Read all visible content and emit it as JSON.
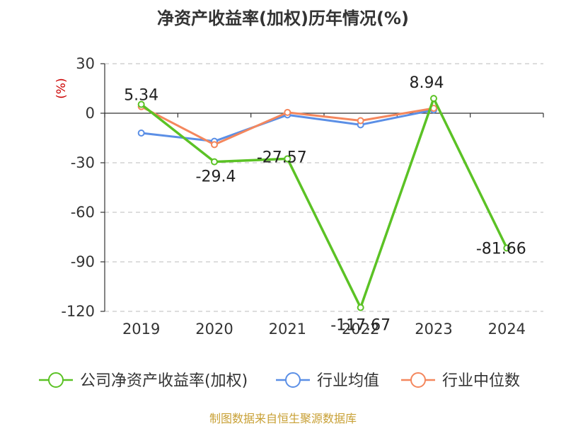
{
  "title": "净资产收益率(加权)历年情况(%)",
  "source": "制图数据来自恒生聚源数据库",
  "colors": {
    "company": "#5BC225",
    "industry_avg": "#5B8FE6",
    "industry_median": "#F4875D",
    "unit": "#CC0000",
    "source": "#C8A035",
    "grid": "#BBBBBB",
    "axis": "#333333"
  },
  "chart_data": {
    "type": "line",
    "title": "净资产收益率(加权)历年情况(%)",
    "ylabel": "(%)",
    "xlabel": "",
    "ylim": [
      -120,
      30
    ],
    "yticks": [
      30,
      0,
      -30,
      -60,
      -90,
      -120
    ],
    "grid": true,
    "legend_position": "bottom",
    "categories": [
      "2019",
      "2020",
      "2021",
      "2022",
      "2023",
      "2024"
    ],
    "series": [
      {
        "name": "公司净资产收益率(加权)",
        "color_key": "company",
        "values": [
          5.34,
          -29.4,
          -27.57,
          -117.67,
          8.94,
          -81.66
        ],
        "labels": [
          "5.34",
          "-29.4",
          "-27.57",
          "-117.67",
          "8.94",
          "-81.66"
        ]
      },
      {
        "name": "行业均值",
        "color_key": "industry_avg",
        "values": [
          -12,
          -17,
          -1,
          -7,
          2,
          null
        ]
      },
      {
        "name": "行业中位数",
        "color_key": "industry_median",
        "values": [
          4,
          -19,
          0.5,
          -4.5,
          3,
          null
        ]
      }
    ]
  }
}
